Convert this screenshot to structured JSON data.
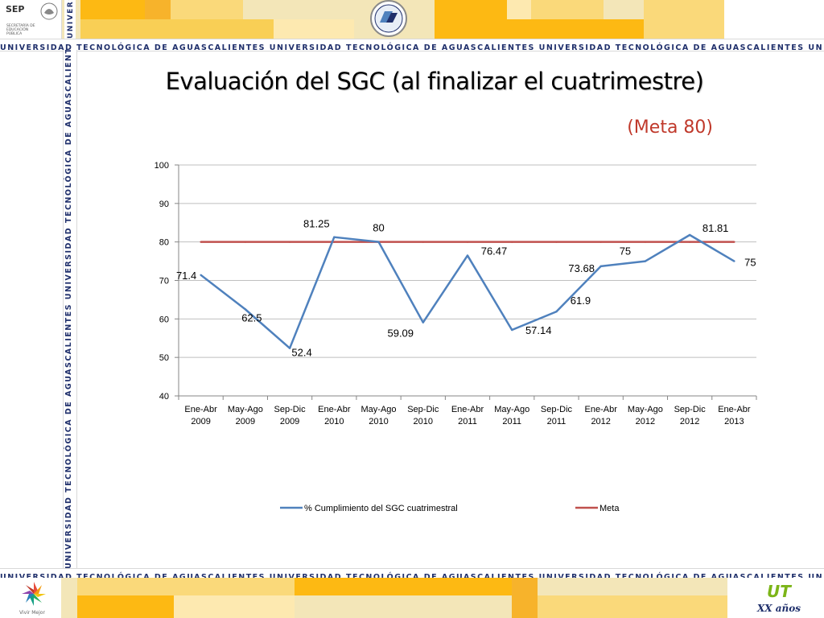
{
  "slide": {
    "title": "Evaluación del SGC (al finalizar el cuatrimestre)",
    "subtitle": "(Meta 80)"
  },
  "branding": {
    "stripe_text": "UNIVERSIDAD TECNOLÓGICA DE AGUASCALIENTES",
    "stripe_repeat": "UNIVERSIDAD TECNOLÓGICA DE AGUASCALIENTES   UNIVERSIDAD TECNOLÓGICA DE AGUASCALIENTES   UNIVERSIDAD TECNOLÓGICA DE AGUASCALIENTES   UNIVERSIDAD",
    "vertical_text": "UNIVERSIDAD TECNOLÓGICA DE AGUASCALIENTES   UNIVERSIDAD TECNOLÓGICA DE AGUASCALIENTES   UNIVERSIDAD",
    "sep_label": "SEP",
    "sep_sub": "SECRETARÍA DE EDUCACIÓN PÚBLICA",
    "vivir_mejor": "Vivir Mejor",
    "anniversary": "XX años",
    "ut_logo": "UT",
    "colors": {
      "stripe_text": "#1f2f6b",
      "banner_bg": "#f3e6b8",
      "banner_block": "#fdb913",
      "meta_text": "#c0392b",
      "series_blue": "#4f81bd",
      "series_red": "#c0504d"
    }
  },
  "chart_data": {
    "type": "line",
    "title": "",
    "xlabel": "",
    "ylabel": "",
    "ylim": [
      40,
      100
    ],
    "yticks": [
      40,
      50,
      60,
      70,
      80,
      90,
      100
    ],
    "grid": true,
    "legend_position": "bottom",
    "categories": [
      "Ene-Abr 2009",
      "May-Ago 2009",
      "Sep-Dic 2009",
      "Ene-Abr 2010",
      "May-Ago 2010",
      "Sep-Dic 2010",
      "Ene-Abr 2011",
      "May-Ago 2011",
      "Sep-Dic 2011",
      "Ene-Abr 2012",
      "May-Ago 2012",
      "Sep-Dic 2012",
      "Ene-Abr 2013"
    ],
    "series": [
      {
        "name": "% Cumplimiento del SGC cuatrimestral",
        "color": "#4f81bd",
        "values": [
          71.4,
          62.5,
          52.4,
          81.25,
          80,
          59.09,
          76.47,
          57.14,
          61.9,
          73.68,
          75,
          81.81,
          75
        ],
        "labels": [
          "71.4",
          "62.5",
          "52.4",
          "81.25",
          "80",
          "59.09",
          "76.47",
          "57.14",
          "61.9",
          "73.68",
          "75",
          "81.81",
          "75"
        ]
      },
      {
        "name": "Meta",
        "color": "#c0504d",
        "values": [
          80,
          80,
          80,
          80,
          80,
          80,
          80,
          80,
          80,
          80,
          80,
          80,
          80
        ]
      }
    ]
  }
}
